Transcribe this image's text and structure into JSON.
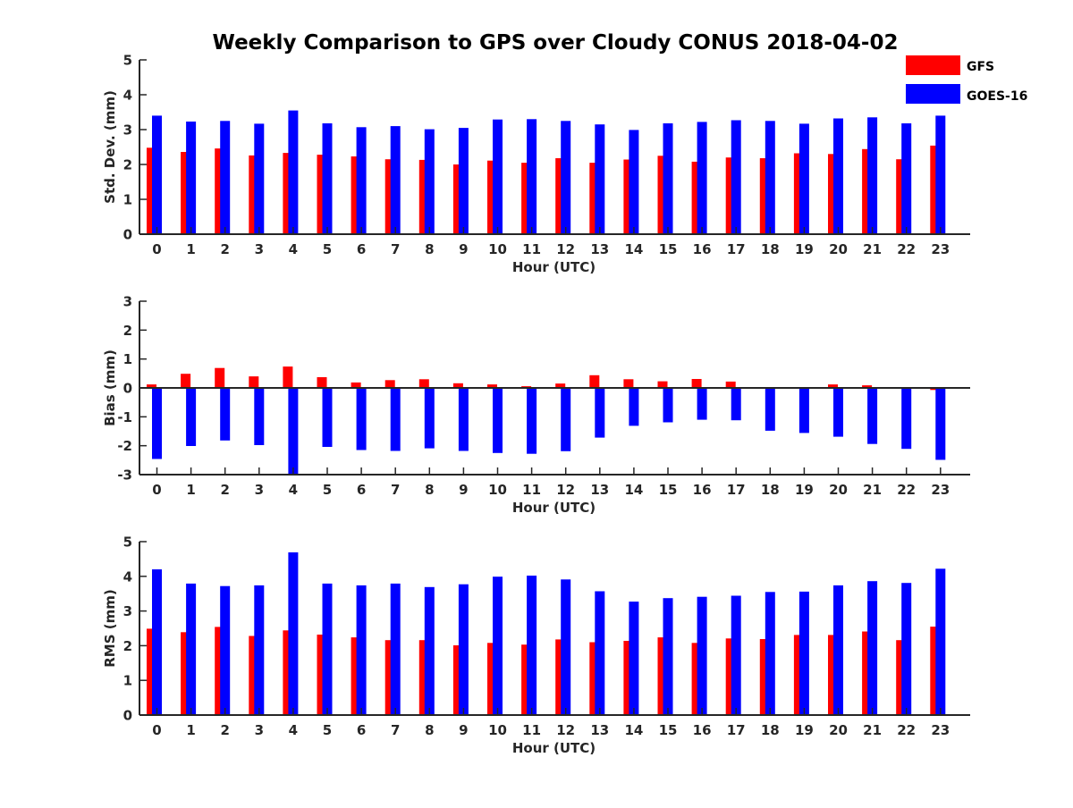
{
  "title": "Weekly Comparison to GPS over Cloudy CONUS 2018-04-02",
  "legend": [
    {
      "name": "GFS",
      "color": "#ff0000"
    },
    {
      "name": "GOES-16",
      "color": "#0000ff"
    }
  ],
  "chart_data": [
    {
      "type": "bar",
      "title": "Weekly Comparison to GPS over Cloudy CONUS 2018-04-02",
      "xlabel": "Hour (UTC)",
      "ylabel": "Std. Dev. (mm)",
      "ylim": [
        0,
        5
      ],
      "yticks": [
        0,
        1,
        2,
        3,
        4,
        5
      ],
      "grid": false,
      "legend_position": "top-right",
      "categories": [
        "0",
        "1",
        "2",
        "3",
        "4",
        "5",
        "6",
        "7",
        "8",
        "9",
        "10",
        "11",
        "12",
        "13",
        "14",
        "15",
        "16",
        "17",
        "18",
        "19",
        "20",
        "21",
        "22",
        "23"
      ],
      "series": [
        {
          "name": "GFS",
          "color": "#ff0000",
          "values": [
            2.48,
            2.36,
            2.46,
            2.26,
            2.33,
            2.28,
            2.23,
            2.15,
            2.13,
            2.0,
            2.11,
            2.05,
            2.18,
            2.05,
            2.14,
            2.25,
            2.08,
            2.2,
            2.18,
            2.32,
            2.3,
            2.44,
            2.15,
            2.54
          ]
        },
        {
          "name": "GOES-16",
          "color": "#0000ff",
          "values": [
            3.4,
            3.23,
            3.25,
            3.17,
            3.55,
            3.18,
            3.07,
            3.1,
            3.01,
            3.05,
            3.29,
            3.3,
            3.25,
            3.15,
            2.99,
            3.18,
            3.22,
            3.27,
            3.25,
            3.17,
            3.32,
            3.35,
            3.18,
            3.4
          ]
        }
      ]
    },
    {
      "type": "bar",
      "xlabel": "Hour (UTC)",
      "ylabel": "Bias (mm)",
      "ylim": [
        -3,
        3
      ],
      "yticks": [
        -3,
        -2,
        -1,
        0,
        1,
        2,
        3
      ],
      "grid": false,
      "categories": [
        "0",
        "1",
        "2",
        "3",
        "4",
        "5",
        "6",
        "7",
        "8",
        "9",
        "10",
        "11",
        "12",
        "13",
        "14",
        "15",
        "16",
        "17",
        "18",
        "19",
        "20",
        "21",
        "22",
        "23"
      ],
      "series": [
        {
          "name": "GFS",
          "color": "#ff0000",
          "values": [
            0.12,
            0.49,
            0.69,
            0.4,
            0.74,
            0.37,
            0.19,
            0.27,
            0.3,
            0.16,
            0.12,
            0.06,
            0.15,
            0.44,
            0.3,
            0.23,
            0.31,
            0.22,
            0.0,
            0.03,
            0.12,
            0.09,
            -0.03,
            -0.07
          ]
        },
        {
          "name": "GOES-16",
          "color": "#0000ff",
          "values": [
            -2.46,
            -2.01,
            -1.82,
            -1.98,
            -3.0,
            -2.04,
            -2.15,
            -2.18,
            -2.09,
            -2.18,
            -2.25,
            -2.28,
            -2.19,
            -1.72,
            -1.31,
            -1.19,
            -1.1,
            -1.12,
            -1.48,
            -1.56,
            -1.69,
            -1.94,
            -2.11,
            -2.49
          ]
        }
      ]
    },
    {
      "type": "bar",
      "xlabel": "Hour (UTC)",
      "ylabel": "RMS (mm)",
      "ylim": [
        0,
        5
      ],
      "yticks": [
        0,
        1,
        2,
        3,
        4,
        5
      ],
      "grid": false,
      "categories": [
        "0",
        "1",
        "2",
        "3",
        "4",
        "5",
        "6",
        "7",
        "8",
        "9",
        "10",
        "11",
        "12",
        "13",
        "14",
        "15",
        "16",
        "17",
        "18",
        "19",
        "20",
        "21",
        "22",
        "23"
      ],
      "series": [
        {
          "name": "GFS",
          "color": "#ff0000",
          "values": [
            2.49,
            2.39,
            2.54,
            2.28,
            2.44,
            2.32,
            2.24,
            2.16,
            2.16,
            2.01,
            2.08,
            2.03,
            2.18,
            2.1,
            2.14,
            2.24,
            2.08,
            2.21,
            2.19,
            2.31,
            2.31,
            2.41,
            2.16,
            2.55
          ]
        },
        {
          "name": "GOES-16",
          "color": "#0000ff",
          "values": [
            4.2,
            3.79,
            3.72,
            3.74,
            4.69,
            3.79,
            3.74,
            3.79,
            3.69,
            3.77,
            3.99,
            4.02,
            3.91,
            3.57,
            3.27,
            3.37,
            3.41,
            3.44,
            3.55,
            3.56,
            3.74,
            3.86,
            3.81,
            4.22
          ]
        }
      ]
    }
  ]
}
